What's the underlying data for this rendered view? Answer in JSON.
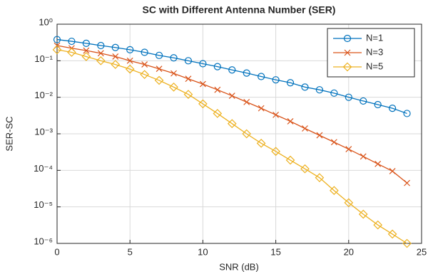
{
  "chart_data": {
    "type": "line",
    "title": "SC with Different Antenna Number (SER)",
    "xlabel": "SNR (dB)",
    "ylabel": "SER-SC",
    "x": [
      0,
      1,
      2,
      3,
      4,
      5,
      6,
      7,
      8,
      9,
      10,
      11,
      12,
      13,
      14,
      15,
      16,
      17,
      18,
      19,
      20,
      21,
      22,
      23,
      24
    ],
    "series": [
      {
        "name": "N=1",
        "color": "#0072bd",
        "marker": "circle",
        "values": [
          0.38,
          0.34,
          0.3,
          0.26,
          0.23,
          0.2,
          0.17,
          0.14,
          0.12,
          0.1,
          0.083,
          0.069,
          0.056,
          0.046,
          0.037,
          0.03,
          0.025,
          0.019,
          0.016,
          0.013,
          0.01,
          0.0079,
          0.0063,
          0.005,
          0.0036
        ]
      },
      {
        "name": "N=3",
        "color": "#d95319",
        "marker": "x",
        "values": [
          0.26,
          0.22,
          0.19,
          0.16,
          0.13,
          0.1,
          0.079,
          0.06,
          0.045,
          0.032,
          0.023,
          0.016,
          0.011,
          0.0074,
          0.005,
          0.0033,
          0.0022,
          0.0014,
          0.00091,
          0.00059,
          0.00038,
          0.00024,
          0.00015,
          9.5e-05,
          4.5e-05
        ]
      },
      {
        "name": "N=5",
        "color": "#edb120",
        "marker": "diamond",
        "values": [
          0.2,
          0.17,
          0.13,
          0.1,
          0.079,
          0.059,
          0.042,
          0.029,
          0.019,
          0.012,
          0.0066,
          0.0036,
          0.0019,
          0.001,
          0.00055,
          0.00033,
          0.00019,
          0.00011,
          6.3e-05,
          2.8e-05,
          1.3e-05,
          6.3e-06,
          3.2e-06,
          1.8e-06,
          1e-06
        ]
      }
    ],
    "xlim": [
      0,
      25
    ],
    "xticks": [
      0,
      5,
      10,
      15,
      20,
      25
    ],
    "ylim": [
      1e-06,
      1
    ],
    "yscale": "log",
    "yticks": [
      {
        "value": 1e-06,
        "label": "10⁻⁶"
      },
      {
        "value": 1e-05,
        "label": "10⁻⁵"
      },
      {
        "value": 0.0001,
        "label": "10⁻⁴"
      },
      {
        "value": 0.001,
        "label": "10⁻³"
      },
      {
        "value": 0.01,
        "label": "10⁻²"
      },
      {
        "value": 0.1,
        "label": "10⁻¹"
      },
      {
        "value": 1,
        "label": "10⁰"
      }
    ],
    "grid": true,
    "legend": "northeast"
  }
}
